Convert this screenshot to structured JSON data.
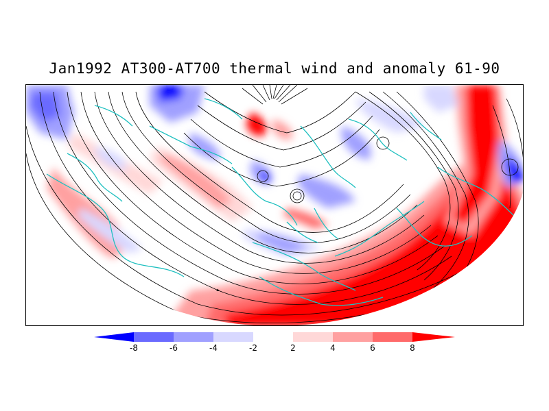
{
  "title": "Jan1992 AT300-AT700 thermal wind and anomaly 61-90",
  "colors": {
    "strong_negative": "#0000ff",
    "negative_3": "#6a6aff",
    "negative_2": "#a0a0ff",
    "negative_1": "#d8d8ff",
    "neutral": "#ffffff",
    "positive_1": "#ffd8d8",
    "positive_2": "#ffa0a0",
    "positive_3": "#ff6a6a",
    "strong_positive": "#ff0000",
    "coastline": "#20c0c0",
    "streamline": "#000000"
  },
  "colorbar": {
    "labels": [
      "-8",
      "-6",
      "-4",
      "-2",
      "2",
      "4",
      "6",
      "8"
    ]
  }
}
